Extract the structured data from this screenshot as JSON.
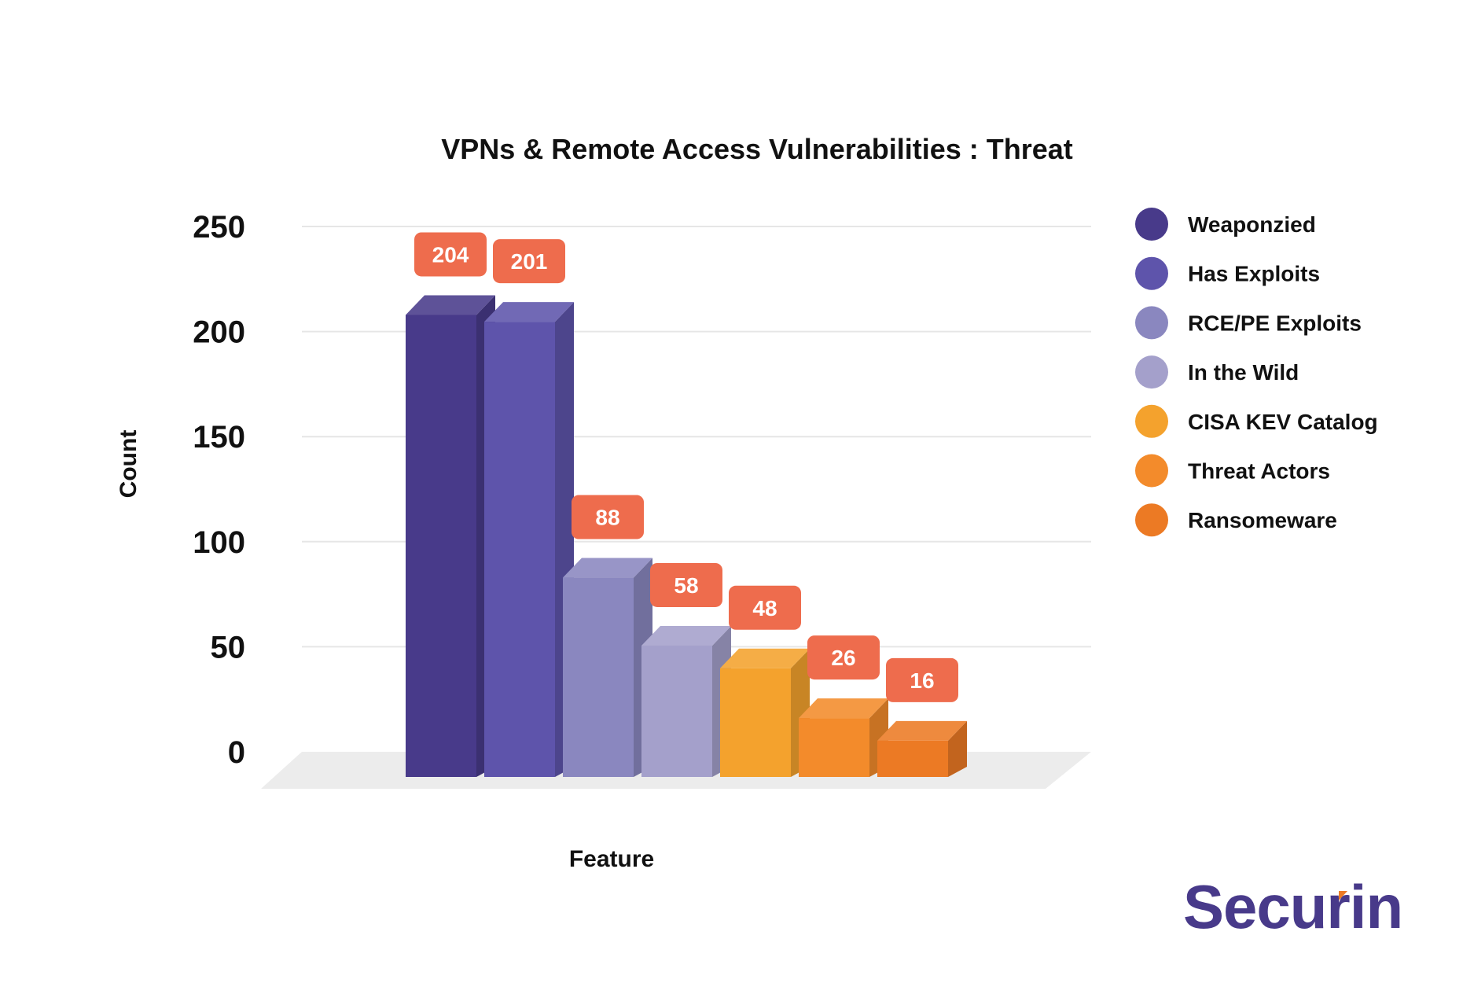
{
  "chart_data": {
    "type": "bar",
    "title": "VPNs & Remote Access Vulnerabilities : Threat",
    "xlabel": "Feature",
    "ylabel": "Count",
    "ylim": [
      0,
      250
    ],
    "yticks": [
      0,
      50,
      100,
      150,
      200,
      250
    ],
    "grid": true,
    "legend_position": "right",
    "categories": [
      "Weaponzied",
      "Has Exploits",
      "RCE/PE Exploits",
      "In the Wild",
      "CISA KEV Catalog",
      "Threat Actors",
      "Ransomeware"
    ],
    "values": [
      204,
      201,
      88,
      58,
      48,
      26,
      16
    ],
    "colors": [
      "#483a8a",
      "#5e54ab",
      "#8a87bf",
      "#a4a0cb",
      "#f4a22d",
      "#f38b2b",
      "#ec7a24"
    ],
    "label_color": "#ee6c4d"
  },
  "logo": {
    "text": "Securin",
    "color": "#483a8a",
    "accent": "#ec7a24"
  }
}
